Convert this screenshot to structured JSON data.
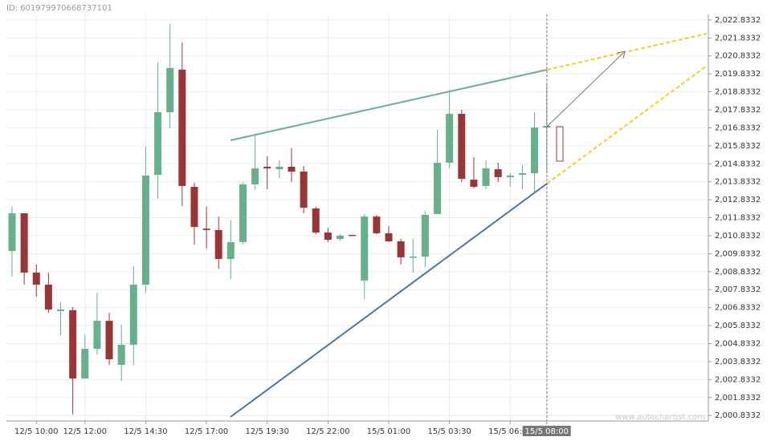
{
  "id_label": "ID: 601979970668737101",
  "watermark": "www.autochartist.com",
  "chart_data": {
    "type": "candlestick",
    "categories": [
      null,
      null,
      "12/5 10:00",
      null,
      null,
      null,
      "12/5 12:00",
      null,
      null,
      null,
      null,
      "12/5 14:30",
      null,
      null,
      null,
      null,
      "12/5 17:00",
      null,
      null,
      null,
      null,
      "12/5 19:30",
      null,
      null,
      null,
      null,
      "12/5 22:00",
      null,
      null,
      null,
      null,
      "15/5 01:00",
      null,
      null,
      null,
      null,
      "15/5 03:30",
      null,
      null,
      null,
      null,
      "15/5 06:00",
      null,
      null,
      "15/5 08:00"
    ],
    "open": [
      2009.98,
      2012.08,
      2008.78,
      2008.11,
      2006.64,
      2006.69,
      2002.89,
      2004.54,
      2006.1,
      2003.65,
      2004.77,
      2008.11,
      2014.22,
      2017.7,
      2020.07,
      2013.55,
      2011.23,
      2011.15,
      2009.54,
      2010.48,
      2013.69,
      2014.67,
      2014.53,
      2014.67,
      2014.4,
      2012.35,
      2011.01,
      2010.65,
      2010.88,
      2008.34,
      2011.9,
      2010.97,
      2010.52,
      2009.63,
      2009.67,
      2012.04,
      2014.89,
      2017.61,
      2013.95,
      2013.6,
      2014.53,
      2014.09,
      2014.22,
      2014.31,
      2016.85
    ],
    "high": [
      2012.44,
      2012.08,
      2009.23,
      2008.78,
      2007.13,
      2006.86,
      2005.3,
      2007.67,
      2006.55,
      2005.88,
      2009.14,
      2015.78,
      2020.47,
      2022.61,
      2021.58,
      2013.78,
      2012.44,
      2011.9,
      2011.68,
      2013.78,
      2016.45,
      2015.25,
      2015.03,
      2015.7,
      2014.71,
      2012.44,
      2011.28,
      2010.92,
      2010.88,
      2012.04,
      2011.99,
      2011.37,
      2010.65,
      2010.65,
      2012.22,
      2016.72,
      2018.95,
      2017.83,
      2015.2,
      2015.03,
      2014.89,
      2014.31,
      2014.76,
      2017.7,
      2019.26
    ],
    "low": [
      2008.56,
      2008.11,
      2007.44,
      2006.55,
      2005.3,
      2000.89,
      2002.89,
      2004.23,
      2003.65,
      2002.76,
      2003.65,
      2007.67,
      2012.88,
      2016.81,
      2012.48,
      2010.34,
      2010.12,
      2009.0,
      2008.43,
      2010.34,
      2013.37,
      2013.42,
      2014.04,
      2013.82,
      2012.08,
      2010.92,
      2010.48,
      2010.56,
      2010.83,
      2007.31,
      2010.92,
      2010.48,
      2009.23,
      2008.78,
      2009.09,
      2012.04,
      2014.58,
      2013.82,
      2013.46,
      2013.42,
      2013.82,
      2013.55,
      2013.42,
      2013.24,
      2014.35
    ],
    "close": [
      2012.08,
      2008.78,
      2008.11,
      2006.73,
      2006.73,
      2002.89,
      2004.54,
      2006.1,
      2003.96,
      2004.77,
      2008.11,
      2014.18,
      2017.7,
      2020.16,
      2013.6,
      2011.32,
      2011.15,
      2009.54,
      2010.48,
      2013.69,
      2014.58,
      2014.58,
      2014.67,
      2014.4,
      2012.39,
      2011.01,
      2010.61,
      2010.83,
      2010.83,
      2011.9,
      2010.97,
      2010.52,
      2009.63,
      2009.67,
      2011.99,
      2014.89,
      2017.61,
      2014.0,
      2013.55,
      2014.58,
      2014.09,
      2014.18,
      2014.31,
      2016.85,
      2016.94
    ],
    "up_color": "#66b08c",
    "down_color": "#9b3535",
    "ylim": [
      2000.53,
      2023.14
    ],
    "yticks": [
      {
        "value": 2000.8332,
        "label": "2,000.8332"
      },
      {
        "value": 2001.8332,
        "label": "2,001.8332"
      },
      {
        "value": 2002.8332,
        "label": "2,002.8332"
      },
      {
        "value": 2003.8332,
        "label": "2,003.8332"
      },
      {
        "value": 2004.8332,
        "label": "2,004.8332"
      },
      {
        "value": 2005.8332,
        "label": "2,005.8332"
      },
      {
        "value": 2006.8332,
        "label": "2,006.8332"
      },
      {
        "value": 2007.8332,
        "label": "2,007.8332"
      },
      {
        "value": 2008.8332,
        "label": "2,008.8332"
      },
      {
        "value": 2009.8332,
        "label": "2,009.8332"
      },
      {
        "value": 2010.8332,
        "label": "2,010.8332"
      },
      {
        "value": 2011.8332,
        "label": "2,011.8332"
      },
      {
        "value": 2012.8332,
        "label": "2,012.8332"
      },
      {
        "value": 2013.8332,
        "label": "2,013.8332"
      },
      {
        "value": 2014.8332,
        "label": "2,014.8332"
      },
      {
        "value": 2015.8332,
        "label": "2,015.8332"
      },
      {
        "value": 2016.8332,
        "label": "2,016.8332"
      },
      {
        "value": 2017.8332,
        "label": "2,017.8332"
      },
      {
        "value": 2018.8332,
        "label": "2,018.8332"
      },
      {
        "value": 2019.8332,
        "label": "2,019.8332"
      },
      {
        "value": 2020.8332,
        "label": "2,020.8332"
      },
      {
        "value": 2021.8332,
        "label": "2,021.8332"
      },
      {
        "value": 2022.8332,
        "label": "2,022.8332"
      }
    ],
    "grid": true
  }
}
